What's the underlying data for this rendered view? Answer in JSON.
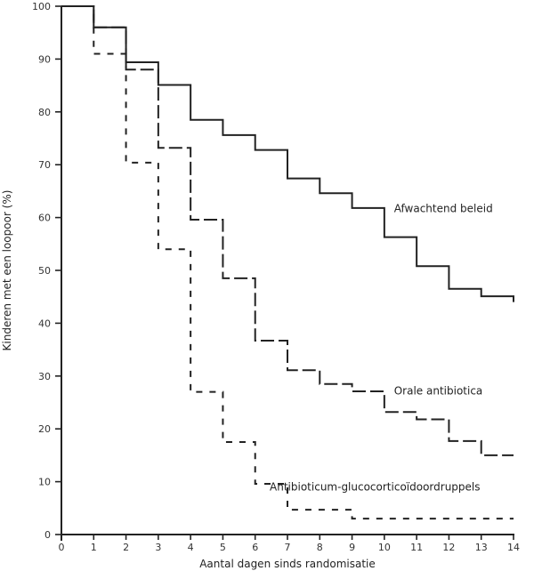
{
  "chart_data": {
    "type": "line",
    "subtype": "kaplan-meier-step",
    "title": "",
    "xlabel": "Aantal dagen sinds randomisatie",
    "ylabel": "Kinderen met een loopoor (%)",
    "xlim": [
      0,
      14
    ],
    "ylim": [
      0,
      100
    ],
    "x_ticks": [
      0,
      1,
      2,
      3,
      4,
      5,
      6,
      7,
      8,
      9,
      10,
      11,
      12,
      13,
      14
    ],
    "x_tick_labels": [
      "0",
      "1",
      "2",
      "3",
      "4",
      "5",
      "6",
      "7",
      "8",
      "9",
      "10",
      "11",
      "12",
      "13",
      "14"
    ],
    "y_ticks": [
      0,
      10,
      20,
      30,
      40,
      50,
      60,
      70,
      80,
      90,
      100
    ],
    "y_tick_labels": [
      "0",
      "10",
      "20",
      "30",
      "40",
      "50",
      "60",
      "70",
      "80",
      "90",
      "100"
    ],
    "grid": false,
    "legend": "inline-labels",
    "x": [
      0,
      1,
      2,
      3,
      4,
      5,
      6,
      7,
      8,
      9,
      10,
      11,
      12,
      13,
      14
    ],
    "series": [
      {
        "name": "Afwachtend beleid",
        "style": "solid",
        "values": [
          100,
          96,
          89.4,
          85.1,
          78.5,
          75.6,
          72.8,
          67.4,
          64.6,
          61.8,
          56.3,
          50.8,
          46.5,
          45.1,
          44.0
        ]
      },
      {
        "name": "Orale antibiotica",
        "style": "long-dash",
        "values": [
          100,
          96,
          88.0,
          73.2,
          59.6,
          48.5,
          36.7,
          31.1,
          28.5,
          27.1,
          23.2,
          21.8,
          17.7,
          15.0,
          15.0
        ]
      },
      {
        "name": "Antibioticum-glucocorticoïdoordruppels",
        "style": "short-dash",
        "values": [
          100,
          91.0,
          70.4,
          54.0,
          27.0,
          17.5,
          9.6,
          4.7,
          4.7,
          3.0,
          3.0,
          3.0,
          3.0,
          3.0,
          3.0
        ]
      }
    ],
    "annotations": [
      {
        "text": "Afwachtend beleid",
        "x": 10.3,
        "y": 61
      },
      {
        "text": "Orale antibiotica",
        "x": 10.3,
        "y": 26.5
      },
      {
        "text": "Antibioticum-glucocorticoïdoordruppels",
        "x": 6.45,
        "y": 8.3
      }
    ],
    "line_color": "#222222"
  }
}
